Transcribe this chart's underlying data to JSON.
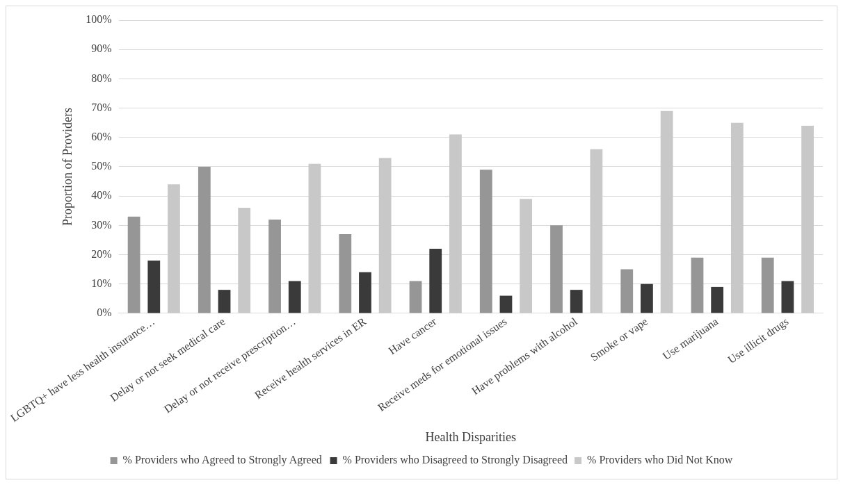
{
  "chart_data": {
    "type": "bar",
    "xlabel": "Health Disparities",
    "ylabel": "Proportion of Providers",
    "categories": [
      "LGBTQ+ have less health insurance…",
      "Delay or not seek medical care",
      "Delay or not receive prescription…",
      "Receive health services in ER",
      "Have cancer",
      "Receive meds for emotional issues",
      "Have problems with alcohol",
      "Smoke or vape",
      "Use marijuana",
      "Use illicit drugs"
    ],
    "series": [
      {
        "name": "% Providers who Agreed to Strongly Agreed",
        "color": "#969696",
        "values": [
          33,
          50,
          32,
          27,
          11,
          49,
          30,
          15,
          19,
          19
        ]
      },
      {
        "name": "% Providers who Disagreed to Strongly Disagreed",
        "color": "#3a3a3a",
        "values": [
          18,
          8,
          11,
          14,
          22,
          6,
          8,
          10,
          9,
          11
        ]
      },
      {
        "name": "% Providers who Did Not Know",
        "color": "#c8c8c8",
        "values": [
          44,
          36,
          51,
          53,
          61,
          39,
          56,
          69,
          65,
          64
        ]
      }
    ],
    "ylim": [
      0,
      100
    ],
    "yticks": [
      {
        "value": 0,
        "label": "0%"
      },
      {
        "value": 10,
        "label": "10%"
      },
      {
        "value": 20,
        "label": "20%"
      },
      {
        "value": 30,
        "label": "30%"
      },
      {
        "value": 40,
        "label": "40%"
      },
      {
        "value": 50,
        "label": "50%"
      },
      {
        "value": 60,
        "label": "60%"
      },
      {
        "value": 70,
        "label": "70%"
      },
      {
        "value": 80,
        "label": "80%"
      },
      {
        "value": 90,
        "label": "90%"
      },
      {
        "value": 100,
        "label": "100%"
      }
    ],
    "grid": "y",
    "legend": "bottom"
  }
}
